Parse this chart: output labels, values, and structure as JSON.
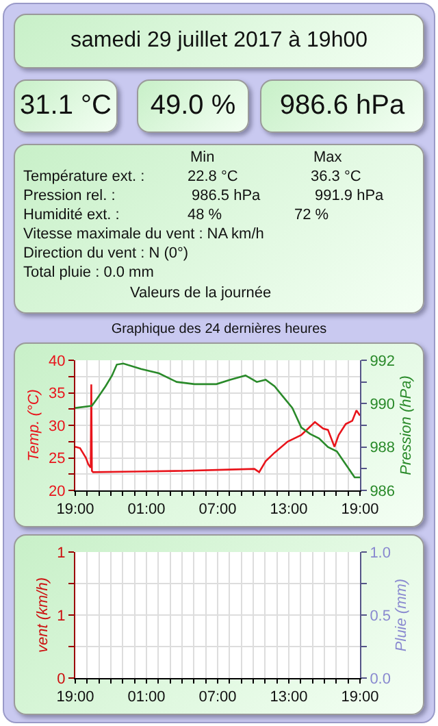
{
  "chart_data": [
    {
      "type": "other",
      "title": "samedi 29 juillet 2017 à 19h00",
      "annotations": [
        "31.1 °C",
        "49.0 %",
        "986.6 hPa",
        "Min",
        "Max",
        "Température ext. :",
        "22.8 °C",
        "36.3 °C",
        "Pression rel. :",
        "986.5 hPa",
        "991.9 hPa",
        "Humidité ext. :",
        "48 %",
        "72 %",
        "Vitesse maximale du vent : NA km/h",
        "Direction du vent : N (0°)",
        "Total pluie : 0.0 mm",
        "Valeurs de la journée",
        "Graphique des 24 dernières heures"
      ]
    },
    {
      "type": "line",
      "ylabel": "Temp. (°C)",
      "y2label": "Pression (hPa)",
      "grid": true,
      "marker": "none",
      "line_style": "solid",
      "xlim": [
        "2017-07-28T19:00",
        "2017-07-29T19:00"
      ],
      "xticks": [
        {
          "value": "2017-07-28T19:00",
          "label": "19:00"
        },
        {
          "value": "2017-07-28T20:00",
          "label": null
        },
        {
          "value": "2017-07-28T21:00",
          "label": null
        },
        {
          "value": "2017-07-28T22:00",
          "label": null
        },
        {
          "value": "2017-07-28T23:00",
          "label": null
        },
        {
          "value": "2017-07-29T00:00",
          "label": null
        },
        {
          "value": "2017-07-29T01:00",
          "label": "01:00"
        },
        {
          "value": "2017-07-29T02:00",
          "label": null
        },
        {
          "value": "2017-07-29T03:00",
          "label": null
        },
        {
          "value": "2017-07-29T04:00",
          "label": null
        },
        {
          "value": "2017-07-29T05:00",
          "label": null
        },
        {
          "value": "2017-07-29T06:00",
          "label": null
        },
        {
          "value": "2017-07-29T07:00",
          "label": "07:00"
        },
        {
          "value": "2017-07-29T08:00",
          "label": null
        },
        {
          "value": "2017-07-29T09:00",
          "label": null
        },
        {
          "value": "2017-07-29T10:00",
          "label": null
        },
        {
          "value": "2017-07-29T11:00",
          "label": null
        },
        {
          "value": "2017-07-29T12:00",
          "label": null
        },
        {
          "value": "2017-07-29T13:00",
          "label": "13:00"
        },
        {
          "value": "2017-07-29T14:00",
          "label": null
        },
        {
          "value": "2017-07-29T15:00",
          "label": null
        },
        {
          "value": "2017-07-29T16:00",
          "label": null
        },
        {
          "value": "2017-07-29T17:00",
          "label": null
        },
        {
          "value": "2017-07-29T18:00",
          "label": null
        },
        {
          "value": "2017-07-29T19:00",
          "label": "19:00"
        }
      ],
      "ylim": [
        20,
        40
      ],
      "yticks": [
        20,
        {
          "value": 22.5,
          "label": null
        },
        25,
        {
          "value": 27.5,
          "label": null
        },
        30,
        {
          "value": 32.5,
          "label": null
        },
        35,
        {
          "value": 37.5,
          "label": null
        },
        40
      ],
      "y2lim": [
        986,
        992
      ],
      "y2ticks": [
        986,
        {
          "value": 987,
          "label": null
        },
        988,
        {
          "value": 989,
          "label": null
        },
        990,
        {
          "value": 991,
          "label": null
        },
        992
      ],
      "series": [
        {
          "color": "#e8141b",
          "x": [
            "2017-07-28T19:00",
            "2017-07-28T19:24",
            "2017-07-28T19:54",
            "2017-07-28T20:06",
            "2017-07-28T20:18",
            "2017-07-28T20:21",
            "2017-07-28T20:24",
            "2017-07-28T20:30",
            "2017-07-29T00:00",
            "2017-07-29T04:00",
            "2017-07-29T08:00",
            "2017-07-29T10:06",
            "2017-07-29T10:30",
            "2017-07-29T11:03",
            "2017-07-29T11:48",
            "2017-07-29T12:54",
            "2017-07-29T14:03",
            "2017-07-29T15:12",
            "2017-07-29T15:54",
            "2017-07-29T16:18",
            "2017-07-29T16:51",
            "2017-07-29T17:12",
            "2017-07-29T17:48",
            "2017-07-29T18:21",
            "2017-07-29T18:42",
            "2017-07-29T19:00"
          ],
          "values": [
            26.7,
            26.5,
            25,
            24,
            23.5,
            36.3,
            23,
            22.8,
            22.9,
            23,
            23.2,
            23.3,
            22.8,
            24.5,
            25.8,
            27.5,
            28.5,
            30.5,
            29.5,
            29.3,
            26.7,
            28.5,
            30.2,
            30.7,
            32.3,
            31.5
          ]
        },
        {
          "color": "#2a8a2a",
          "axis": "y2",
          "x": [
            "2017-07-28T19:00",
            "2017-07-28T20:24",
            "2017-07-28T20:48",
            "2017-07-28T21:33",
            "2017-07-28T22:06",
            "2017-07-28T22:30",
            "2017-07-28T23:03",
            "2017-07-29T00:33",
            "2017-07-29T02:03",
            "2017-07-29T03:33",
            "2017-07-29T05:03",
            "2017-07-29T06:54",
            "2017-07-29T08:03",
            "2017-07-29T09:21",
            "2017-07-29T10:18",
            "2017-07-29T11:03",
            "2017-07-29T11:48",
            "2017-07-29T12:33",
            "2017-07-29T13:18",
            "2017-07-29T14:03",
            "2017-07-29T14:48",
            "2017-07-29T15:33",
            "2017-07-29T16:18",
            "2017-07-29T17:03",
            "2017-07-29T17:48",
            "2017-07-29T18:33",
            "2017-07-29T19:00"
          ],
          "values": [
            989.8,
            989.9,
            990.2,
            990.8,
            991.3,
            991.8,
            991.85,
            991.6,
            991.4,
            991.0,
            990.9,
            990.9,
            991.1,
            991.3,
            991.0,
            991.1,
            990.8,
            990.3,
            989.8,
            988.9,
            988.6,
            988.4,
            988.0,
            987.8,
            987.2,
            986.6,
            986.6
          ]
        }
      ]
    },
    {
      "type": "line",
      "ylabel": "vent (km/h)",
      "y2label": "Pluie (mm)",
      "grid": true,
      "marker": "none",
      "line_style": "solid",
      "categories": [
        "19:00",
        null,
        null,
        null,
        null,
        null,
        "01:00",
        null,
        null,
        null,
        null,
        null,
        "07:00",
        null,
        null,
        null,
        null,
        null,
        "13:00",
        null,
        null,
        null,
        null,
        null,
        "19:00"
      ],
      "ylim": [
        0,
        1
      ],
      "yticks": [
        0,
        {
          "value": 0.25,
          "label": null
        },
        {
          "value": 0.5,
          "label": "1"
        },
        {
          "value": 0.75,
          "label": null
        },
        1
      ],
      "y2lim": [
        0,
        1
      ],
      "y2ticks": [
        {
          "value": 0,
          "label": "0.0"
        },
        {
          "value": 0.25,
          "label": null
        },
        {
          "value": 0.5,
          "label": "0.5"
        },
        {
          "value": 0.75,
          "label": null
        },
        {
          "value": 1,
          "label": "1.0"
        }
      ],
      "series": [
        {
          "color": "#cc1111",
          "values": [
            null,
            null,
            null,
            null,
            null,
            null,
            null,
            null,
            null,
            null,
            null,
            null,
            null,
            null,
            null,
            null,
            null,
            null,
            null,
            null,
            null,
            null,
            null,
            null,
            null
          ]
        },
        {
          "color": "#8a8ad0",
          "axis": "y2",
          "values": [
            null,
            null,
            null,
            null,
            null,
            null,
            null,
            null,
            null,
            null,
            null,
            null,
            null,
            null,
            null,
            null,
            null,
            null,
            null,
            null,
            null,
            null,
            null,
            null,
            null
          ]
        }
      ]
    }
  ]
}
